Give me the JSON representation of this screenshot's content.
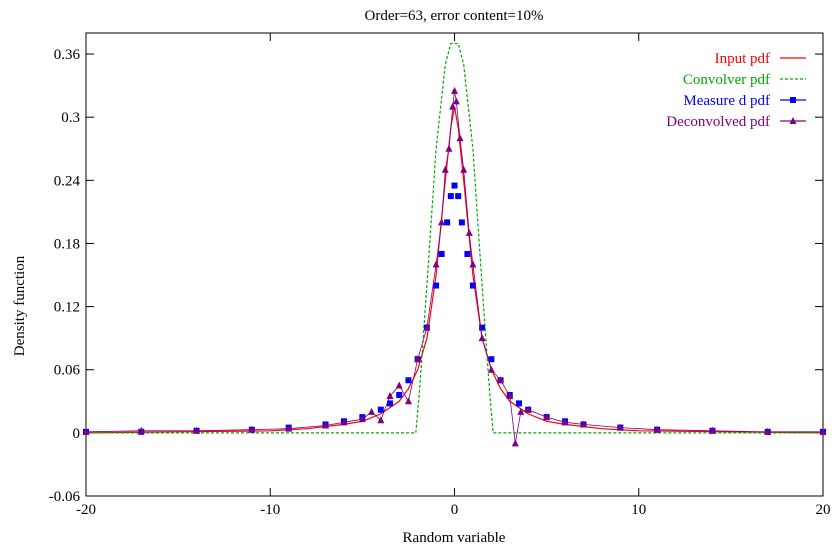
{
  "chart_data": {
    "type": "line",
    "title": "Order=63, error content=10%",
    "xlabel": "Random variable",
    "ylabel": "Density function",
    "xlim": [
      -20,
      20
    ],
    "ylim": [
      -0.06,
      0.38
    ],
    "xticks": [
      -20,
      -10,
      0,
      10,
      20
    ],
    "xtick_labels": [
      "-20",
      "-10",
      "0",
      "10",
      "20"
    ],
    "yticks": [
      -0.06,
      0,
      0.06,
      0.12,
      0.18,
      0.24,
      0.3,
      0.36
    ],
    "ytick_labels": [
      "-0.06",
      "0",
      "0.06",
      "0.12",
      "0.18",
      "0.24",
      "0.3",
      "0.36"
    ],
    "grid": false,
    "legend_position": "top-right",
    "series": [
      {
        "name": "Input  pdf",
        "color": "#ff0000",
        "style": "solid-line",
        "points": [
          [
            -20,
            0.0
          ],
          [
            -15,
            0.001
          ],
          [
            -10,
            0.002
          ],
          [
            -8,
            0.004
          ],
          [
            -6,
            0.008
          ],
          [
            -5,
            0.011
          ],
          [
            -4,
            0.018
          ],
          [
            -3,
            0.03
          ],
          [
            -2.5,
            0.042
          ],
          [
            -2,
            0.06
          ],
          [
            -1.5,
            0.09
          ],
          [
            -1,
            0.15
          ],
          [
            -0.5,
            0.24
          ],
          [
            -0.2,
            0.29
          ],
          [
            0,
            0.31
          ],
          [
            0.2,
            0.29
          ],
          [
            0.5,
            0.24
          ],
          [
            1,
            0.15
          ],
          [
            1.5,
            0.09
          ],
          [
            2,
            0.06
          ],
          [
            2.5,
            0.042
          ],
          [
            3,
            0.03
          ],
          [
            4,
            0.018
          ],
          [
            5,
            0.011
          ],
          [
            6,
            0.008
          ],
          [
            8,
            0.004
          ],
          [
            10,
            0.002
          ],
          [
            15,
            0.001
          ],
          [
            20,
            0.0
          ]
        ]
      },
      {
        "name": "Convolver pdf",
        "color": "#00aa00",
        "style": "dashed-line",
        "points": [
          [
            -20,
            0.0
          ],
          [
            -2.1,
            0.0
          ],
          [
            -1.9,
            0.04
          ],
          [
            -1.5,
            0.14
          ],
          [
            -1,
            0.27
          ],
          [
            -0.5,
            0.35
          ],
          [
            -0.2,
            0.37
          ],
          [
            0,
            0.37
          ],
          [
            0.2,
            0.37
          ],
          [
            0.5,
            0.35
          ],
          [
            1,
            0.27
          ],
          [
            1.5,
            0.14
          ],
          [
            1.9,
            0.04
          ],
          [
            2.1,
            0.0
          ],
          [
            20,
            0.0
          ]
        ]
      },
      {
        "name": "Measure d pdf",
        "color": "#0000ff",
        "style": "squares",
        "points": [
          [
            -20,
            0.001
          ],
          [
            -17,
            0.001
          ],
          [
            -14,
            0.002
          ],
          [
            -11,
            0.003
          ],
          [
            -9,
            0.005
          ],
          [
            -7,
            0.008
          ],
          [
            -6,
            0.011
          ],
          [
            -5,
            0.015
          ],
          [
            -4,
            0.022
          ],
          [
            -3.5,
            0.028
          ],
          [
            -3,
            0.036
          ],
          [
            -2.5,
            0.05
          ],
          [
            -2,
            0.07
          ],
          [
            -1.5,
            0.1
          ],
          [
            -1,
            0.14
          ],
          [
            -0.7,
            0.17
          ],
          [
            -0.4,
            0.2
          ],
          [
            -0.2,
            0.225
          ],
          [
            0,
            0.235
          ],
          [
            0.2,
            0.225
          ],
          [
            0.4,
            0.2
          ],
          [
            0.7,
            0.17
          ],
          [
            1,
            0.14
          ],
          [
            1.5,
            0.1
          ],
          [
            2,
            0.07
          ],
          [
            2.5,
            0.05
          ],
          [
            3,
            0.036
          ],
          [
            3.5,
            0.028
          ],
          [
            4,
            0.022
          ],
          [
            5,
            0.015
          ],
          [
            6,
            0.011
          ],
          [
            7,
            0.008
          ],
          [
            9,
            0.005
          ],
          [
            11,
            0.003
          ],
          [
            14,
            0.002
          ],
          [
            17,
            0.001
          ],
          [
            20,
            0.001
          ]
        ]
      },
      {
        "name": "Deconvolved pdf",
        "color": "#800080",
        "style": "triangles",
        "points": [
          [
            -20,
            0.001
          ],
          [
            -17,
            0.002
          ],
          [
            -14,
            0.002
          ],
          [
            -11,
            0.003
          ],
          [
            -9,
            0.004
          ],
          [
            -7,
            0.007
          ],
          [
            -6,
            0.01
          ],
          [
            -5,
            0.013
          ],
          [
            -4.5,
            0.02
          ],
          [
            -4,
            0.012
          ],
          [
            -3.5,
            0.035
          ],
          [
            -3,
            0.045
          ],
          [
            -2.5,
            0.03
          ],
          [
            -2,
            0.07
          ],
          [
            -1.5,
            0.1
          ],
          [
            -1,
            0.16
          ],
          [
            -0.7,
            0.2
          ],
          [
            -0.5,
            0.25
          ],
          [
            -0.3,
            0.27
          ],
          [
            -0.1,
            0.31
          ],
          [
            0,
            0.325
          ],
          [
            0.1,
            0.315
          ],
          [
            0.3,
            0.28
          ],
          [
            0.5,
            0.25
          ],
          [
            0.8,
            0.19
          ],
          [
            1,
            0.16
          ],
          [
            1.5,
            0.09
          ],
          [
            2,
            0.06
          ],
          [
            2.5,
            0.05
          ],
          [
            3,
            0.035
          ],
          [
            3.3,
            -0.01
          ],
          [
            3.6,
            0.02
          ],
          [
            4,
            0.022
          ],
          [
            5,
            0.015
          ],
          [
            6,
            0.01
          ],
          [
            7,
            0.008
          ],
          [
            9,
            0.005
          ],
          [
            11,
            0.003
          ],
          [
            14,
            0.002
          ],
          [
            17,
            0.001
          ],
          [
            20,
            0.001
          ]
        ]
      }
    ]
  }
}
